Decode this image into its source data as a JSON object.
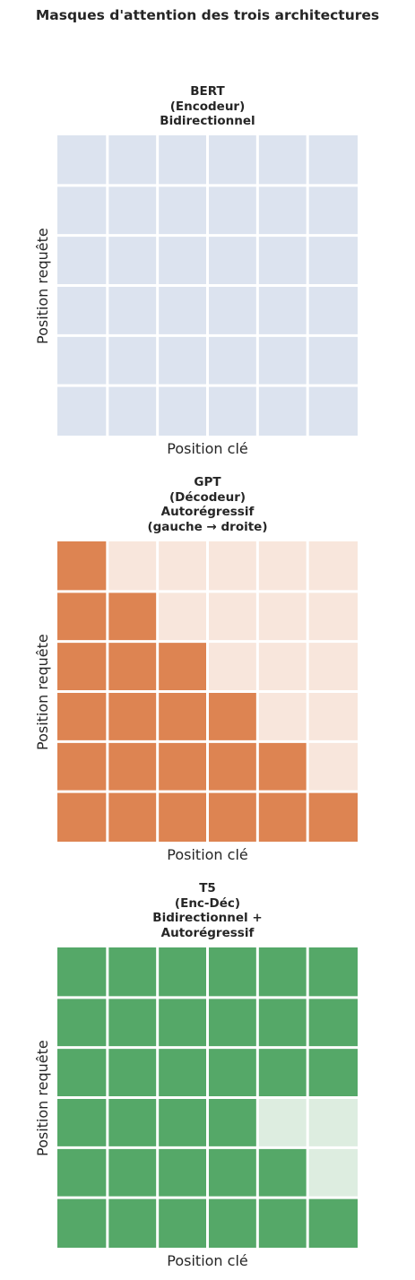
{
  "title": "Masques d'attention des trois architectures",
  "chart_data": [
    {
      "type": "heatmap",
      "title": "BERT\n(Encodeur)\nBidirectionnel",
      "xlabel": "Position clé",
      "ylabel": "Position requête",
      "colors": {
        "on": "#dce3ef",
        "off": "#dce3ef"
      },
      "matrix": [
        [
          1,
          1,
          1,
          1,
          1,
          1
        ],
        [
          1,
          1,
          1,
          1,
          1,
          1
        ],
        [
          1,
          1,
          1,
          1,
          1,
          1
        ],
        [
          1,
          1,
          1,
          1,
          1,
          1
        ],
        [
          1,
          1,
          1,
          1,
          1,
          1
        ],
        [
          1,
          1,
          1,
          1,
          1,
          1
        ]
      ]
    },
    {
      "type": "heatmap",
      "title": "GPT\n(Décodeur)\nAutorégressif\n(gauche → droite)",
      "xlabel": "Position clé",
      "ylabel": "Position requête",
      "colors": {
        "on": "#dd8452",
        "off": "#f8e6dc"
      },
      "matrix": [
        [
          1,
          0,
          0,
          0,
          0,
          0
        ],
        [
          1,
          1,
          0,
          0,
          0,
          0
        ],
        [
          1,
          1,
          1,
          0,
          0,
          0
        ],
        [
          1,
          1,
          1,
          1,
          0,
          0
        ],
        [
          1,
          1,
          1,
          1,
          1,
          0
        ],
        [
          1,
          1,
          1,
          1,
          1,
          1
        ]
      ]
    },
    {
      "type": "heatmap",
      "title": "T5\n(Enc-Déc)\nBidirectionnel +\nAutorégressif",
      "xlabel": "Position clé",
      "ylabel": "Position requête",
      "colors": {
        "on": "#55a868",
        "off": "#ddede0"
      },
      "matrix": [
        [
          1,
          1,
          1,
          1,
          1,
          1
        ],
        [
          1,
          1,
          1,
          1,
          1,
          1
        ],
        [
          1,
          1,
          1,
          1,
          1,
          1
        ],
        [
          1,
          1,
          1,
          1,
          0,
          0
        ],
        [
          1,
          1,
          1,
          1,
          1,
          0
        ],
        [
          1,
          1,
          1,
          1,
          1,
          1
        ]
      ]
    }
  ]
}
